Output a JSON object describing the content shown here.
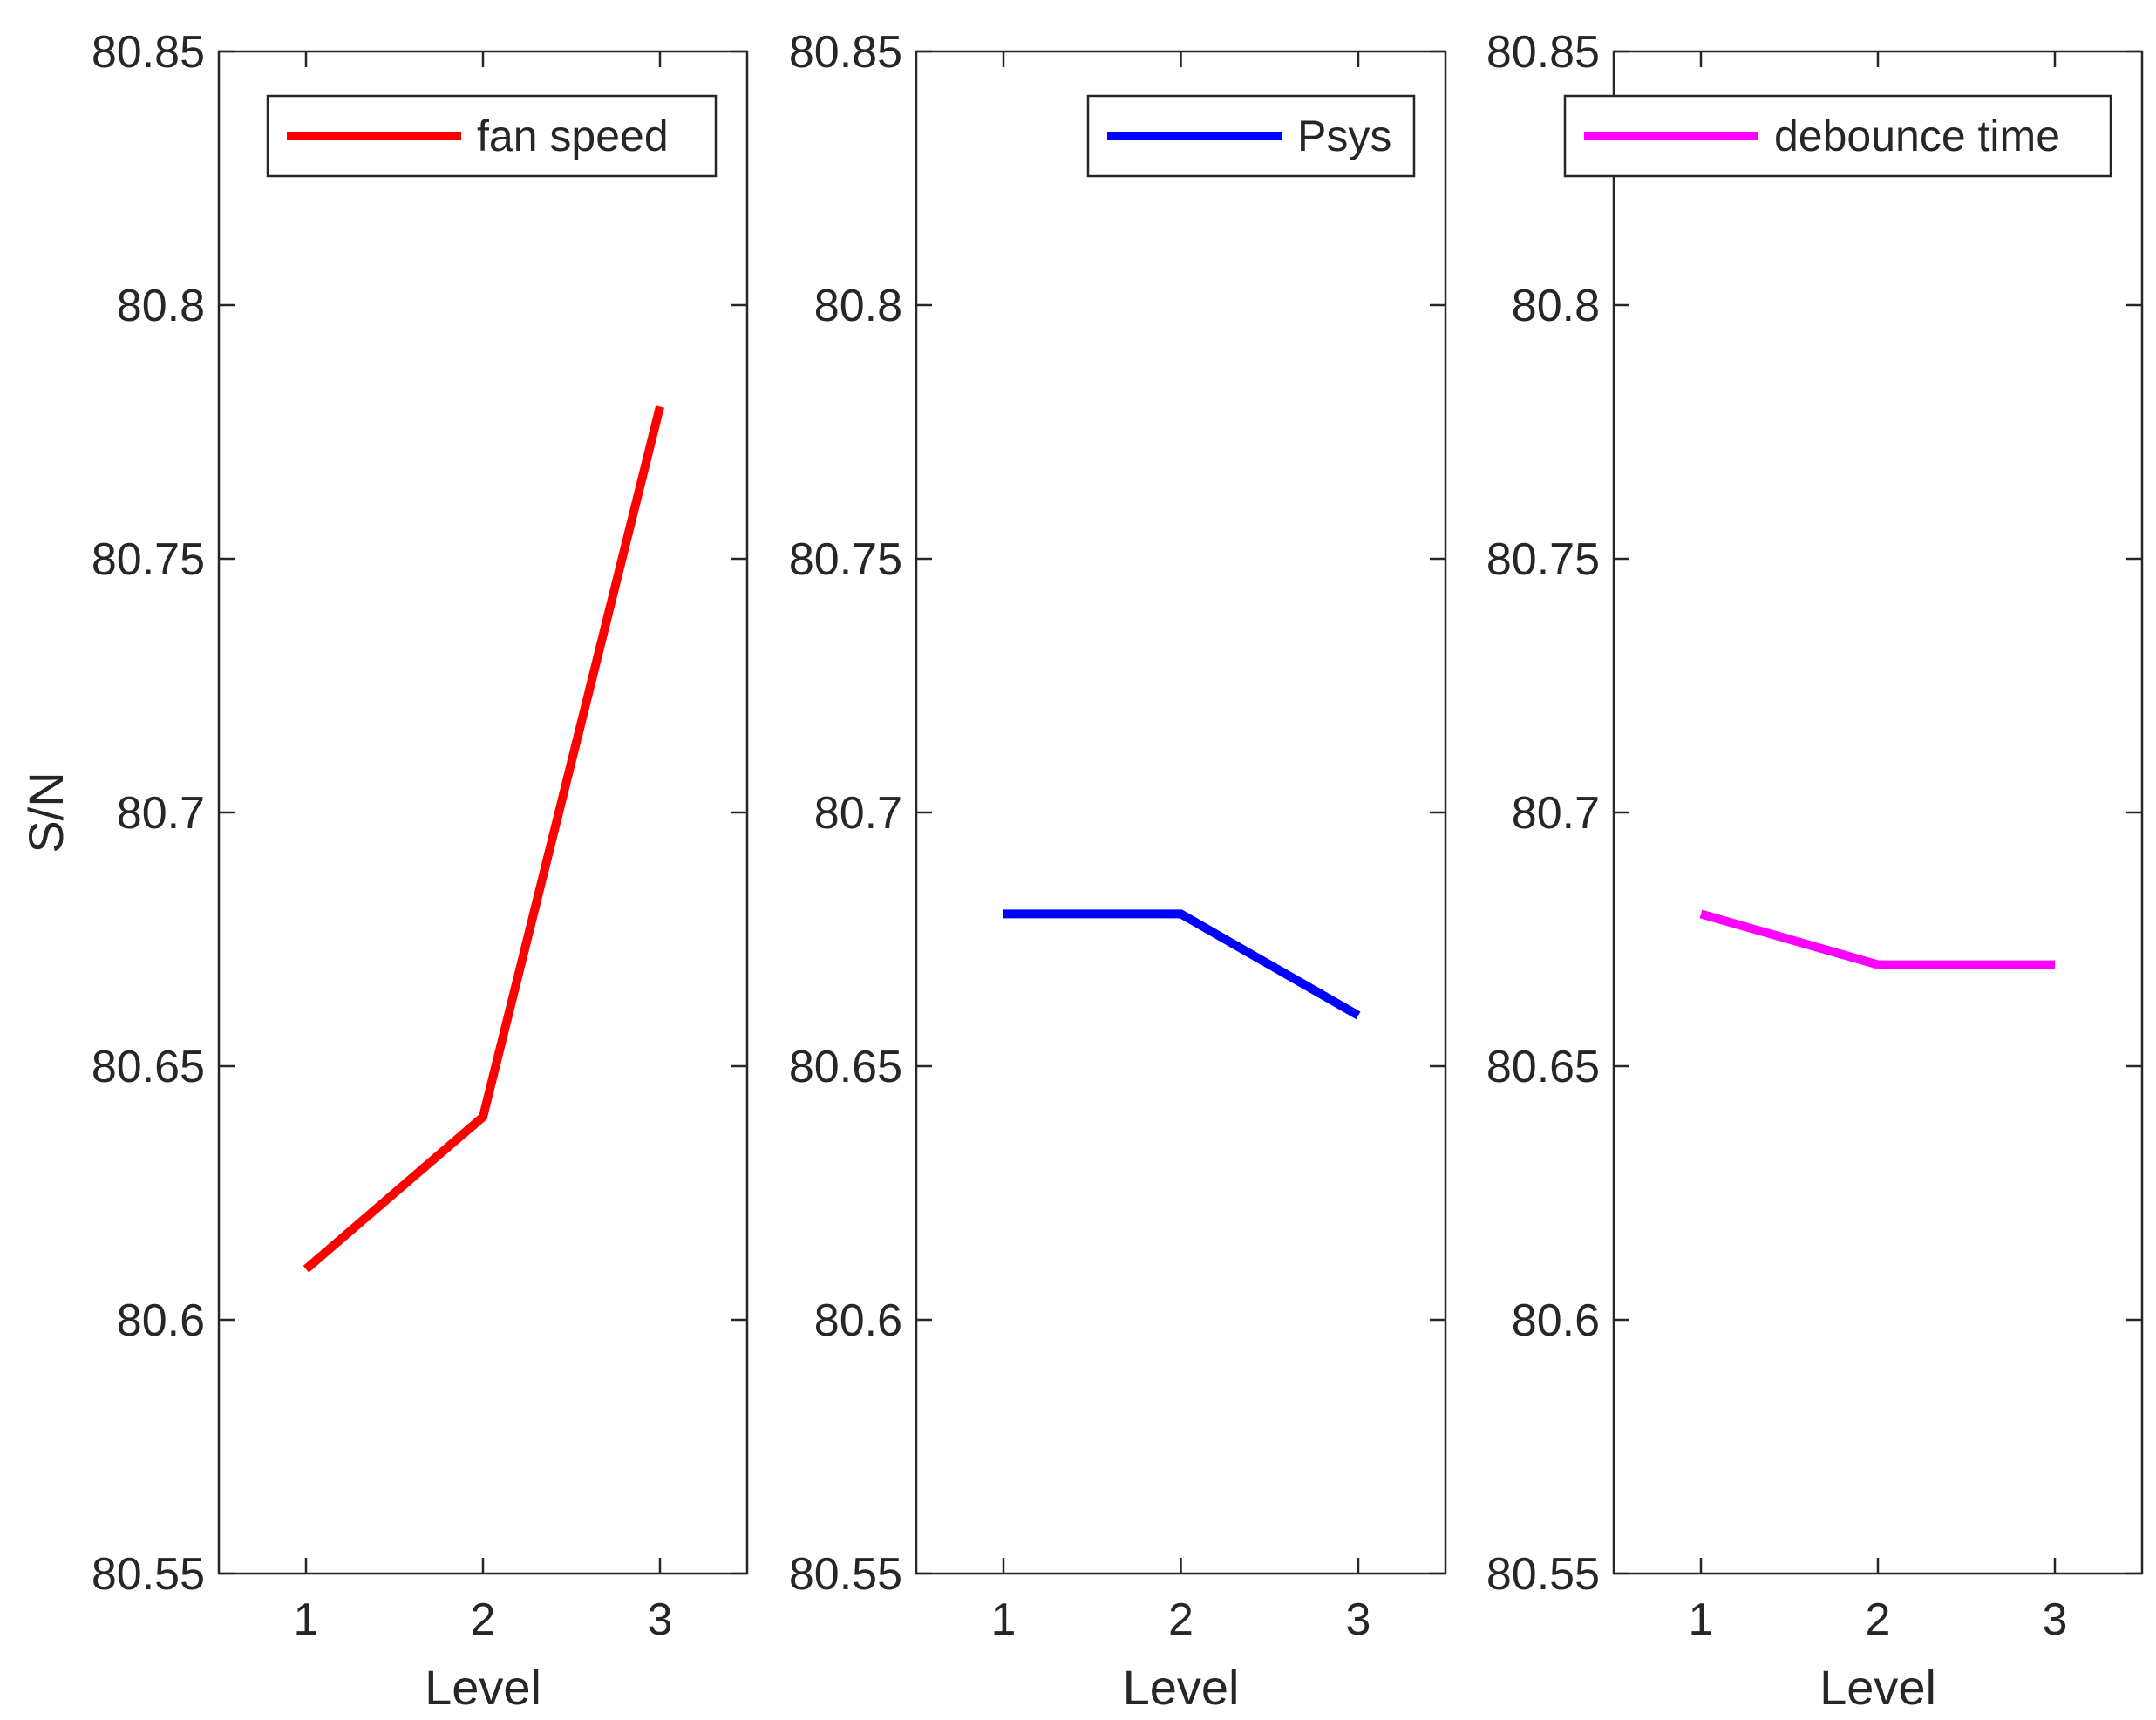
{
  "chart_data": [
    {
      "type": "line",
      "categories": [
        "1",
        "2",
        "3"
      ],
      "x": [
        1,
        2,
        3
      ],
      "series": [
        {
          "name": "fan speed",
          "values": [
            80.61,
            80.64,
            80.78
          ],
          "color": "#ff0000"
        }
      ],
      "xlabel": "Level",
      "ylabel": "S/N",
      "ylim": [
        80.55,
        80.85
      ],
      "yticks": [
        "80.55",
        "80.6",
        "80.65",
        "80.7",
        "80.75",
        "80.8",
        "80.85"
      ],
      "xticks": [
        "1",
        "2",
        "3"
      ],
      "legend_position": "top-right",
      "grid": false
    },
    {
      "type": "line",
      "categories": [
        "1",
        "2",
        "3"
      ],
      "x": [
        1,
        2,
        3
      ],
      "series": [
        {
          "name": "Psys",
          "values": [
            80.68,
            80.68,
            80.66
          ],
          "color": "#0000ff"
        }
      ],
      "xlabel": "Level",
      "ylabel": "",
      "ylim": [
        80.55,
        80.85
      ],
      "yticks": [
        "80.55",
        "80.6",
        "80.65",
        "80.7",
        "80.75",
        "80.8",
        "80.85"
      ],
      "xticks": [
        "1",
        "2",
        "3"
      ],
      "legend_position": "top-right",
      "grid": false
    },
    {
      "type": "line",
      "categories": [
        "1",
        "2",
        "3"
      ],
      "x": [
        1,
        2,
        3
      ],
      "series": [
        {
          "name": "debounce time",
          "values": [
            80.68,
            80.67,
            80.67
          ],
          "color": "#ff00ff"
        }
      ],
      "xlabel": "Level",
      "ylabel": "",
      "ylim": [
        80.55,
        80.85
      ],
      "yticks": [
        "80.55",
        "80.6",
        "80.65",
        "80.7",
        "80.75",
        "80.8",
        "80.85"
      ],
      "xticks": [
        "1",
        "2",
        "3"
      ],
      "legend_position": "top-right",
      "grid": false
    }
  ]
}
